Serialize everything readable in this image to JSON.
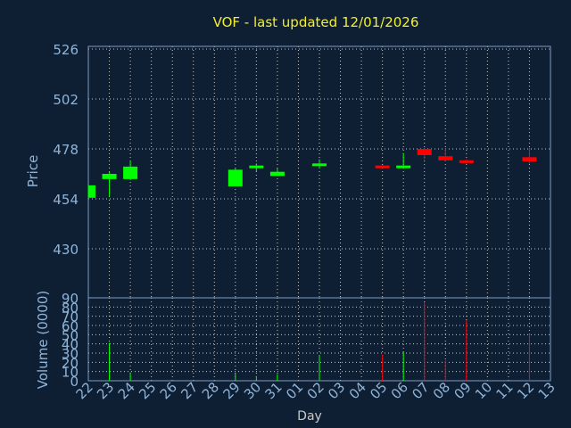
{
  "chart_data": [
    {
      "type": "candlestick",
      "title": "VOF - last updated 12/01/2026",
      "ylabel": "Price",
      "ylim": [
        430,
        526
      ],
      "yticks": [
        430,
        454,
        478,
        502,
        526
      ],
      "grid": true,
      "categories": [
        "22",
        "23",
        "24",
        "25",
        "26",
        "27",
        "28",
        "29",
        "30",
        "31",
        "01",
        "02",
        "03",
        "04",
        "05",
        "06",
        "07",
        "08",
        "09",
        "10",
        "11",
        "12",
        "13"
      ],
      "candles": [
        {
          "x": "22",
          "open": 454.5,
          "close": 460.5,
          "high": 460.5,
          "low": 454.5,
          "color": "#00ff00"
        },
        {
          "x": "23",
          "open": 463.5,
          "close": 466.0,
          "high": 467.0,
          "low": 455.0,
          "color": "#00ff00"
        },
        {
          "x": "24",
          "open": 463.5,
          "close": 469.5,
          "high": 472.5,
          "low": 463.0,
          "color": "#00ff00"
        },
        {
          "x": "29",
          "open": 460.0,
          "close": 468.0,
          "high": 468.5,
          "low": 460.0,
          "color": "#00ff00"
        },
        {
          "x": "30",
          "open": 469.0,
          "close": 470.0,
          "high": 471.0,
          "low": 467.0,
          "color": "#00ff00"
        },
        {
          "x": "31",
          "open": 465.0,
          "close": 467.0,
          "high": 468.5,
          "low": 465.0,
          "color": "#00ff00"
        },
        {
          "x": "02",
          "open": 470.0,
          "close": 471.0,
          "high": 473.0,
          "low": 468.5,
          "color": "#00ff00"
        },
        {
          "x": "05",
          "open": 470.0,
          "close": 469.0,
          "high": 470.0,
          "low": 469.0,
          "color": "#ff0000"
        },
        {
          "x": "06",
          "open": 469.5,
          "close": 470.0,
          "high": 476.0,
          "low": 468.5,
          "color": "#00ff00"
        },
        {
          "x": "07",
          "open": 478.0,
          "close": 475.0,
          "high": 478.5,
          "low": 473.0,
          "color": "#ff0000"
        },
        {
          "x": "08",
          "open": 474.5,
          "close": 472.5,
          "high": 478.0,
          "low": 472.0,
          "color": "#ff0000"
        },
        {
          "x": "09",
          "open": 472.5,
          "close": 471.5,
          "high": 473.0,
          "low": 471.0,
          "color": "#ff0000"
        },
        {
          "x": "12",
          "open": 474.0,
          "close": 472.0,
          "high": 478.5,
          "low": 471.0,
          "color": "#ff0000"
        }
      ]
    },
    {
      "type": "bar",
      "ylabel": "Volume (0000)",
      "xlabel": "Day",
      "ylim": [
        0,
        90
      ],
      "yticks": [
        0,
        10,
        20,
        30,
        40,
        50,
        60,
        70,
        80,
        90
      ],
      "grid": true,
      "categories": [
        "22",
        "23",
        "24",
        "25",
        "26",
        "27",
        "28",
        "29",
        "30",
        "31",
        "01",
        "02",
        "03",
        "04",
        "05",
        "06",
        "07",
        "08",
        "09",
        "10",
        "11",
        "12",
        "13"
      ],
      "values": [
        {
          "x": "23",
          "value": 41,
          "color": "#00ff00"
        },
        {
          "x": "24",
          "value": 9,
          "color": "#00ff00"
        },
        {
          "x": "29",
          "value": 8,
          "color": "#00ff00"
        },
        {
          "x": "30",
          "value": 5,
          "color": "#00ff00"
        },
        {
          "x": "31",
          "value": 7,
          "color": "#00ff00"
        },
        {
          "x": "02",
          "value": 28,
          "color": "#00ff00"
        },
        {
          "x": "05",
          "value": 28,
          "color": "#ff0000"
        },
        {
          "x": "06",
          "value": 31,
          "color": "#00ff00"
        },
        {
          "x": "07",
          "value": 85,
          "color": "#ff0000"
        },
        {
          "x": "08",
          "value": 22,
          "color": "#ff0000"
        },
        {
          "x": "09",
          "value": 66,
          "color": "#ff0000"
        },
        {
          "x": "12",
          "value": 51,
          "color": "#ff0000"
        }
      ]
    }
  ],
  "colors": {
    "background": "#0f1f33",
    "title": "#f2ef2e",
    "axis_text": "#8fb4d9",
    "day_label": "#c9c9c9",
    "up": "#00ff00",
    "down": "#ff0000"
  }
}
